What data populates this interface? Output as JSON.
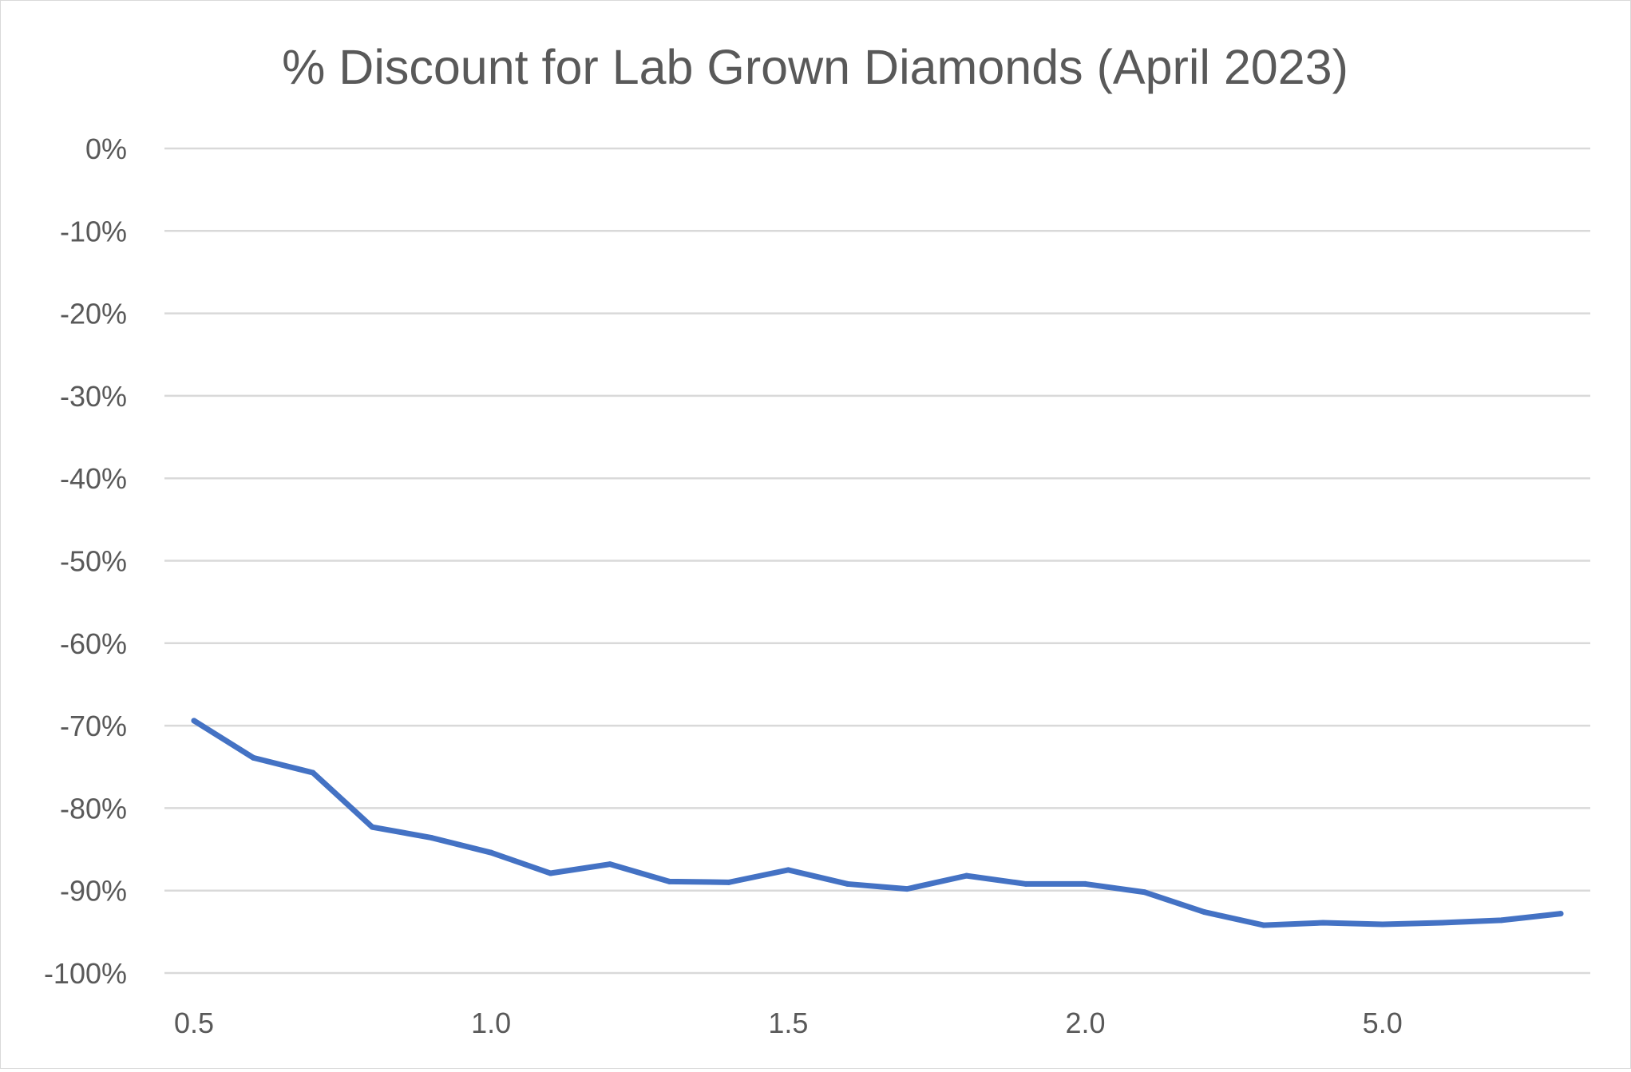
{
  "chart_data": {
    "type": "line",
    "title": "% Discount for Lab Grown Diamonds (April 2023)",
    "xlabel": "",
    "ylabel": "",
    "x_tick_labels": [
      {
        "index": 0,
        "label": "0.5"
      },
      {
        "index": 5,
        "label": "1.0"
      },
      {
        "index": 10,
        "label": "1.5"
      },
      {
        "index": 15,
        "label": "2.0"
      },
      {
        "index": 20,
        "label": "5.0"
      }
    ],
    "y_ticks": [
      0,
      -10,
      -20,
      -30,
      -40,
      -50,
      -60,
      -70,
      -80,
      -90,
      -100
    ],
    "y_tick_labels": [
      "0%",
      "-10%",
      "-20%",
      "-30%",
      "-40%",
      "-50%",
      "-60%",
      "-70%",
      "-80%",
      "-90%",
      "-100%"
    ],
    "ylim": [
      -100,
      0
    ],
    "grid": true,
    "legend": "none",
    "series": [
      {
        "name": "% Discount",
        "color": "#4472C4",
        "values": [
          -69.4,
          -73.9,
          -75.7,
          -82.3,
          -83.6,
          -85.4,
          -87.9,
          -86.8,
          -88.9,
          -89.0,
          -87.5,
          -89.2,
          -89.8,
          -88.2,
          -89.2,
          -89.2,
          -90.2,
          -92.6,
          -94.2,
          -93.9,
          -94.1,
          -93.9,
          -93.6,
          -92.8
        ]
      }
    ]
  }
}
